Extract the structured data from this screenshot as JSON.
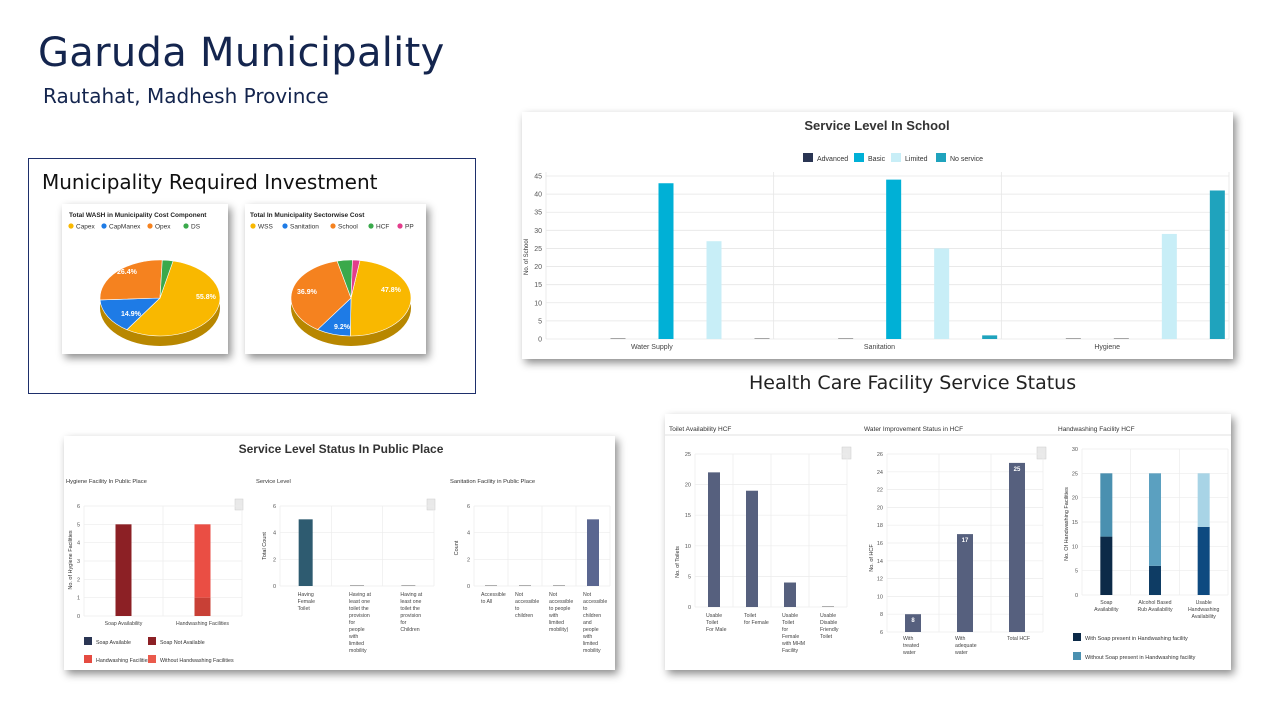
{
  "page": {
    "title": "Garuda Municipality",
    "subtitle": "Rautahat, Madhesh Province"
  },
  "investment": {
    "title": "Municipality Required Investment",
    "pie1": {
      "title": "Total WASH in Municipality Cost Component",
      "legend": [
        "Capex",
        "CapManex",
        "Opex",
        "DS"
      ],
      "labels": [
        "55.8%",
        "14.9%",
        "26.4%"
      ]
    },
    "pie2": {
      "title": "Total In Municipality Sectorwise Cost",
      "legend": [
        "WSS",
        "Sanitation",
        "School",
        "HCF",
        "PP"
      ],
      "labels": [
        "47.8%",
        "9.2%",
        "36.9%"
      ]
    }
  },
  "school_chart": {
    "title": "Service Level In School",
    "ylabel": "No. of School",
    "legend": [
      "Advanced",
      "Basic",
      "Limited",
      "No service"
    ],
    "yticks": [
      "0",
      "5",
      "10",
      "15",
      "20",
      "25",
      "30",
      "35",
      "40",
      "45"
    ]
  },
  "hcf": {
    "heading": "Health Care Facility Service Status",
    "toilet": {
      "title": "Toilet Availability HCF",
      "ylabel": "No. of Toilets",
      "yticks": [
        "0",
        "5",
        "10",
        "15",
        "20",
        "25"
      ],
      "xlabels": [
        [
          "Usable",
          "Toilet",
          "For Male"
        ],
        [
          "Toilet",
          "for Female"
        ],
        [
          "Usable",
          "Toilet",
          "for",
          "Female",
          "with MHM",
          "Facility"
        ],
        [
          "Usable",
          "Disable",
          "Friendly",
          "Toilet"
        ]
      ]
    },
    "water": {
      "title": "Water Improvement Status in HCF",
      "ylabel": "No. of HCF",
      "yticks": [
        "6",
        "8",
        "10",
        "12",
        "14",
        "16",
        "18",
        "20",
        "22",
        "24",
        "26"
      ],
      "xlabels": [
        [
          "With",
          "treated",
          "water"
        ],
        [
          "With",
          "adequate",
          "water"
        ],
        [
          "Total HCF"
        ]
      ],
      "datalabels": [
        "8",
        "17",
        "25"
      ]
    },
    "handwash": {
      "title": "Handwashing Facility HCF",
      "ylabel": "No. Of Handwashing Facilities",
      "yticks": [
        "0",
        "5",
        "10",
        "15",
        "20",
        "25",
        "30"
      ],
      "xlabels": [
        [
          "Soap",
          "Availability"
        ],
        [
          "Alcohol Based",
          "Rub Availability"
        ],
        [
          "Usable",
          "Handwashing",
          "Availability"
        ]
      ],
      "legend": [
        "With Soap present in Handwashing facility",
        "Without Soap present in Handwashing facility"
      ]
    }
  },
  "public": {
    "title": "Service Level Status In Public Place",
    "hygiene": {
      "title": "Hygiene Facility In Public Place",
      "ylabel": "No. of Hygiene Facilities",
      "yticks": [
        "0",
        "1",
        "2",
        "3",
        "4",
        "5",
        "6"
      ],
      "xlabels": [
        "Soap Availability",
        "Handwashing Facilities"
      ],
      "legend": [
        "Soap Available",
        "Soap Not Available",
        "Handwashing Facilities",
        "Without Handwashing Facilities"
      ]
    },
    "service": {
      "title": "Service Level",
      "ylabel": "Total Count",
      "yticks": [
        "0",
        "2",
        "4",
        "6"
      ],
      "xlabels": [
        [
          "Having",
          "Female",
          "Toilet"
        ],
        [
          "Having at",
          "least one",
          "toilet the",
          "provision",
          "for",
          "people",
          "with",
          "limited",
          "mobility"
        ],
        [
          "Having at",
          "least one",
          "toilet the",
          "provision",
          "for",
          "Children"
        ]
      ]
    },
    "sanitation": {
      "title": "Sanitation Facility in Public Place",
      "ylabel": "Count",
      "yticks": [
        "0",
        "2",
        "4",
        "6"
      ],
      "xlabels": [
        [
          "Accessible",
          "to All"
        ],
        [
          "Not",
          "accessible",
          "to",
          "children"
        ],
        [
          "Not",
          "accessible",
          "to people",
          "with",
          "limited",
          "mobility)"
        ],
        [
          "Not",
          "accessible",
          "to",
          "children",
          "and",
          "people",
          "with",
          "limited",
          "mobility"
        ]
      ]
    }
  },
  "colors": {
    "navy": "#14254e",
    "advanced": "#2a3553",
    "basic": "#00b0d6",
    "limited": "#c8eef7",
    "noservice": "#1fa3bd",
    "capex": "#f9b800",
    "capmanex": "#1e7be6",
    "opex": "#f5821f",
    "ds": "#3aa94b",
    "pp": "#e33d8c",
    "slate": "#56607e",
    "darkred": "#8c2025",
    "red": "#ea4e44"
  },
  "chart_data": [
    {
      "type": "bar",
      "title": "Service Level In School",
      "ylabel": "No. of School",
      "categories": [
        "Water Supply",
        "Sanitation",
        "Hygiene"
      ],
      "series": [
        {
          "name": "Advanced",
          "values": [
            0,
            0,
            0
          ]
        },
        {
          "name": "Basic",
          "values": [
            43,
            44,
            0
          ]
        },
        {
          "name": "Limited",
          "values": [
            27,
            25,
            29
          ]
        },
        {
          "name": "No service",
          "values": [
            0,
            1,
            41
          ]
        }
      ],
      "ylim": [
        0,
        45
      ]
    },
    {
      "type": "pie",
      "title": "Total WASH in Municipality Cost Component",
      "categories": [
        "Capex",
        "CapManex",
        "Opex",
        "DS"
      ],
      "values": [
        55.8,
        14.9,
        26.4,
        2.9
      ]
    },
    {
      "type": "pie",
      "title": "Total In Municipality Sectorwise Cost",
      "categories": [
        "WSS",
        "Sanitation",
        "School",
        "HCF",
        "PP"
      ],
      "values": [
        47.8,
        9.2,
        36.9,
        4.1,
        2.0
      ]
    },
    {
      "type": "bar",
      "title": "Toilet Availability HCF",
      "ylabel": "No. of Toilets",
      "categories": [
        "Usable Toilet For Male",
        "Toilet for Female",
        "Usable Toilet for Female with MHM Facility",
        "Usable Disable Friendly Toilet"
      ],
      "values": [
        22,
        19,
        4,
        0
      ],
      "ylim": [
        0,
        25
      ]
    },
    {
      "type": "bar",
      "title": "Water Improvement Status in HCF",
      "ylabel": "No. of HCF",
      "categories": [
        "With treated water",
        "With adequate water",
        "Total HCF"
      ],
      "values": [
        8,
        17,
        25
      ],
      "ylim": [
        6,
        26
      ]
    },
    {
      "type": "bar",
      "title": "Handwashing Facility HCF",
      "ylabel": "No. Of Handwashing Facilities",
      "categories": [
        "Soap Availability",
        "Alcohol Based Rub Availability",
        "Usable Handwashing Availability"
      ],
      "series": [
        {
          "name": "With Soap present in Handwashing facility",
          "values": [
            12,
            6,
            14
          ]
        },
        {
          "name": "Without Soap present in Handwashing facility",
          "values": [
            13,
            19,
            11
          ]
        }
      ],
      "ylim": [
        0,
        30
      ]
    },
    {
      "type": "bar",
      "title": "Hygiene Facility In Public Place",
      "ylabel": "No. of Hygiene Facilities",
      "categories": [
        "Soap Availability",
        "Handwashing Facilities"
      ],
      "series": [
        {
          "name": "Soap Available",
          "values": [
            0,
            0
          ]
        },
        {
          "name": "Soap Not Available",
          "values": [
            5,
            0
          ]
        },
        {
          "name": "Handwashing Facilities",
          "values": [
            0,
            1
          ]
        },
        {
          "name": "Without Handwashing Facilities",
          "values": [
            0,
            4
          ]
        }
      ],
      "ylim": [
        0,
        6
      ]
    },
    {
      "type": "bar",
      "title": "Service Level",
      "ylabel": "Total Count",
      "categories": [
        "Having Female Toilet",
        "Having at least one toilet the provision for people with limited mobility",
        "Having at least one toilet the provision for Children"
      ],
      "values": [
        5,
        0,
        0
      ],
      "ylim": [
        0,
        6
      ]
    },
    {
      "type": "bar",
      "title": "Sanitation Facility in Public Place",
      "ylabel": "Count",
      "categories": [
        "Accessible to All",
        "Not accessible to children",
        "Not accessible to people with limited mobility)",
        "Not accessible to children and people with limited mobility"
      ],
      "values": [
        0,
        0,
        0,
        5
      ],
      "ylim": [
        0,
        6
      ]
    }
  ]
}
